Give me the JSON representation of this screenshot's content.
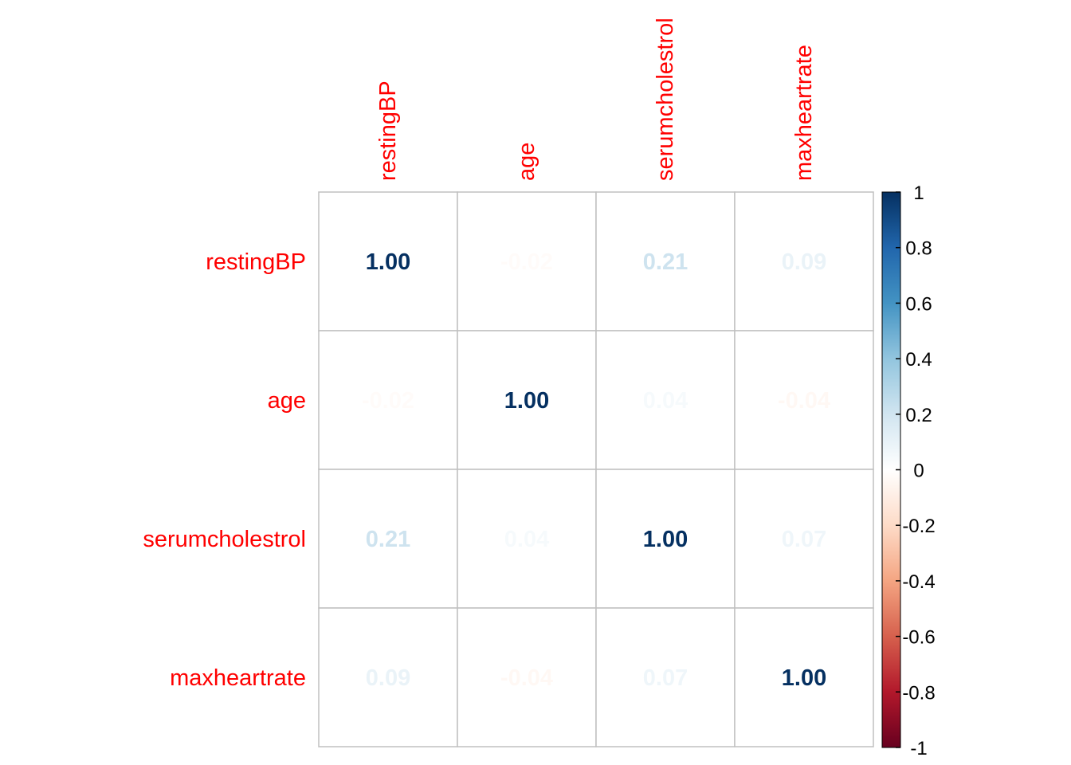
{
  "chart_data": {
    "type": "heatmap",
    "variables": [
      "restingBP",
      "age",
      "serumcholestrol",
      "maxheartrate"
    ],
    "matrix": [
      [
        1.0,
        -0.02,
        0.21,
        0.09
      ],
      [
        -0.02,
        1.0,
        0.04,
        -0.04
      ],
      [
        0.21,
        0.04,
        1.0,
        0.07
      ],
      [
        0.09,
        -0.04,
        0.07,
        1.0
      ]
    ],
    "cell_labels": [
      [
        "1.00",
        "-0.02",
        "0.21",
        "0.09"
      ],
      [
        "-0.02",
        "1.00",
        "0.04",
        "-0.04"
      ],
      [
        "0.21",
        "0.04",
        "1.00",
        "0.07"
      ],
      [
        "0.09",
        "-0.04",
        "0.07",
        "1.00"
      ]
    ],
    "label_color": "#ff0000",
    "colorbar": {
      "range": [
        -1,
        1
      ],
      "ticks": [
        "1",
        "0.8",
        "0.6",
        "0.4",
        "0.2",
        "0",
        "-0.2",
        "-0.4",
        "-0.6",
        "-0.8",
        "-1"
      ],
      "colors": [
        "#67001F",
        "#B2182B",
        "#D6604D",
        "#F4A582",
        "#FDDBC7",
        "#FFFFFF",
        "#D1E5F0",
        "#92C5DE",
        "#4393C3",
        "#2166AC",
        "#053061"
      ]
    },
    "grid": true
  }
}
